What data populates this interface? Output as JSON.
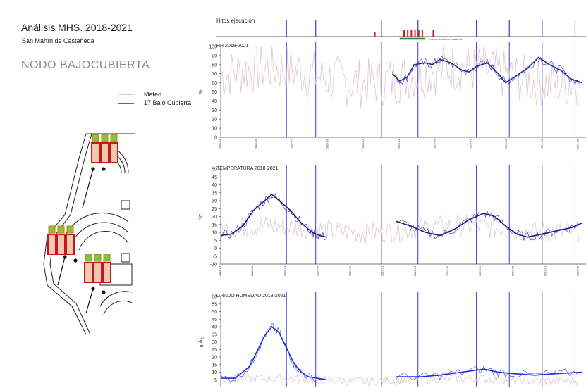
{
  "header": {
    "title": "Análisis MHS. 2018-2021",
    "subtitle": "San Martín de Castañeda",
    "node": "NODO BAJOCUBIERTA"
  },
  "legend": [
    {
      "label": "Meteo",
      "color": "#e2c6cc"
    },
    {
      "label": "17 Bajo Cubierta",
      "color": "#5a5fd0"
    }
  ],
  "milestones": {
    "title": "Hitos ejecución",
    "annotation": "Intervenciones en cubierta",
    "marker_colors": {
      "line": "#3b3bd9",
      "event": "#c81e1e",
      "intervention": "#1a8a1a"
    }
  },
  "sensor_labels": [
    "",
    "",
    "",
    "",
    "",
    "",
    "",
    "",
    "",
    "",
    "",
    ""
  ],
  "chart_data": [
    {
      "type": "line",
      "title": "HR 2018-2021",
      "ylabel": "%",
      "ylim": [
        0,
        100
      ],
      "yticks": [
        0,
        10,
        20,
        30,
        40,
        50,
        60,
        70,
        80,
        90,
        100
      ],
      "xticks": [
        "2018-03",
        "2018-05",
        "2018-07",
        "2018-09",
        "2018-11",
        "2019-01",
        "2019-03",
        "2020-01",
        "2020-05",
        "2021-01",
        "2021-05"
      ],
      "series": [
        {
          "name": "Meteo",
          "color": "#e2c6cc",
          "mean": 68,
          "amp": 28,
          "x": [
            0,
            0.98
          ]
        },
        {
          "name": "17 Bajo Cubierta",
          "color": "#1d2a9a",
          "points": [
            [
              0.47,
              70
            ],
            [
              0.49,
              62
            ],
            [
              0.51,
              66
            ],
            [
              0.53,
              80
            ],
            [
              0.56,
              82
            ],
            [
              0.58,
              80
            ],
            [
              0.6,
              86
            ],
            [
              0.63,
              82
            ],
            [
              0.66,
              74
            ],
            [
              0.68,
              72
            ],
            [
              0.7,
              78
            ],
            [
              0.73,
              82
            ],
            [
              0.76,
              70
            ],
            [
              0.78,
              60
            ],
            [
              0.81,
              68
            ],
            [
              0.84,
              76
            ],
            [
              0.87,
              88
            ],
            [
              0.9,
              80
            ],
            [
              0.93,
              74
            ],
            [
              0.96,
              64
            ],
            [
              0.99,
              60
            ]
          ]
        }
      ]
    },
    {
      "type": "line",
      "title": "TEMPERATURA 2018-2021",
      "ylabel": "ºC",
      "ylim": [
        -10,
        50
      ],
      "yticks": [
        -10,
        -5,
        0,
        5,
        10,
        15,
        20,
        25,
        30,
        35,
        40,
        45,
        50
      ],
      "xticks": [
        "2018-03",
        "2018-05",
        "2018-07",
        "2018-09",
        "2018-11",
        "2019-01",
        "2019-03",
        "2019-05",
        "2020-01",
        "2020-05",
        "2021-01",
        "2021-05"
      ],
      "series": [
        {
          "name": "Meteo",
          "color": "#e2c6cc",
          "mean": 12,
          "amp": 7,
          "x": [
            0,
            0.98
          ]
        },
        {
          "name": "17 Bajo Cubierta",
          "color": "#1a1a8e",
          "points": [
            [
              0,
              8
            ],
            [
              0.03,
              9
            ],
            [
              0.06,
              14
            ],
            [
              0.09,
              24
            ],
            [
              0.12,
              30
            ],
            [
              0.14,
              34
            ],
            [
              0.16,
              30
            ],
            [
              0.19,
              24
            ],
            [
              0.22,
              16
            ],
            [
              0.25,
              10
            ],
            [
              0.27,
              8
            ],
            [
              0.29,
              7
            ]
          ]
        },
        {
          "name": "17 Bajo Cubierta",
          "color": "#1a1a8e",
          "points": [
            [
              0.48,
              17
            ],
            [
              0.52,
              14
            ],
            [
              0.56,
              10
            ],
            [
              0.6,
              8
            ],
            [
              0.64,
              12
            ],
            [
              0.68,
              18
            ],
            [
              0.72,
              22
            ],
            [
              0.75,
              20
            ],
            [
              0.78,
              14
            ],
            [
              0.81,
              9
            ],
            [
              0.84,
              7
            ],
            [
              0.88,
              9
            ],
            [
              0.92,
              11
            ],
            [
              0.96,
              13
            ],
            [
              0.99,
              16
            ]
          ]
        }
      ]
    },
    {
      "type": "line",
      "title": "GRADO HUMEDAD 2018-2021",
      "ylabel": "gr/kg",
      "ylim": [
        0,
        60
      ],
      "yticks": [
        5,
        10,
        15,
        20,
        25,
        30,
        35,
        40,
        45,
        50,
        55,
        60
      ],
      "xticks": [],
      "series": [
        {
          "name": "Meteo",
          "color": "#e2c6cc",
          "mean": 5,
          "amp": 3,
          "x": [
            0,
            0.98
          ]
        },
        {
          "name": "17 Bajo Cubierta",
          "color": "#1f2ee0",
          "points": [
            [
              0,
              6
            ],
            [
              0.04,
              6
            ],
            [
              0.08,
              14
            ],
            [
              0.1,
              24
            ],
            [
              0.12,
              34
            ],
            [
              0.14,
              40
            ],
            [
              0.16,
              36
            ],
            [
              0.18,
              26
            ],
            [
              0.2,
              16
            ],
            [
              0.22,
              10
            ],
            [
              0.24,
              7
            ],
            [
              0.29,
              5
            ]
          ]
        },
        {
          "name": "17 Bajo Cubierta",
          "color": "#1f2ee0",
          "points": [
            [
              0.48,
              7
            ],
            [
              0.55,
              7
            ],
            [
              0.6,
              8
            ],
            [
              0.66,
              10
            ],
            [
              0.72,
              12
            ],
            [
              0.76,
              10
            ],
            [
              0.8,
              9
            ],
            [
              0.86,
              8
            ],
            [
              0.92,
              9
            ],
            [
              0.99,
              10
            ]
          ]
        }
      ]
    }
  ]
}
